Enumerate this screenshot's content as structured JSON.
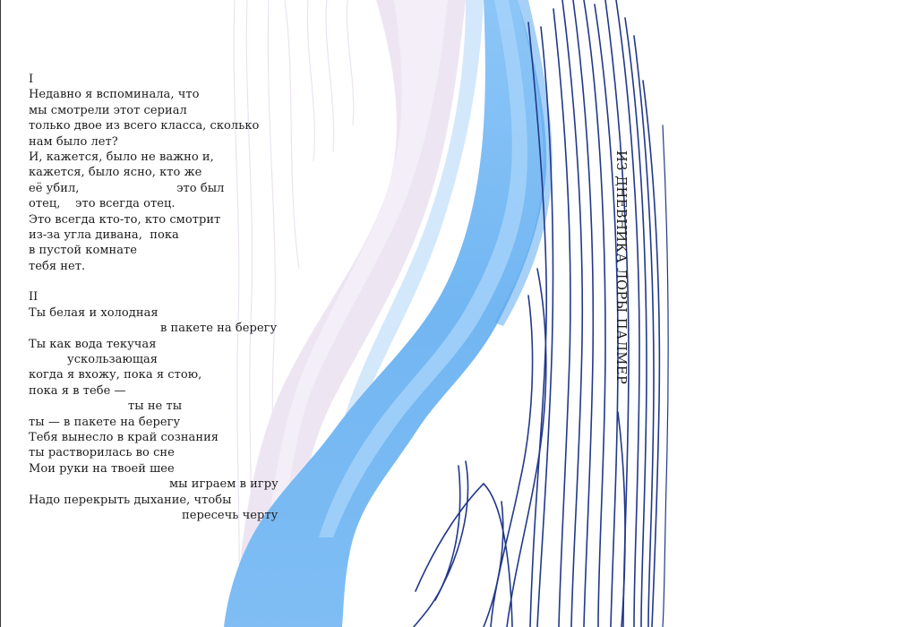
{
  "vertical_title": "ИЗ ДНЕВНИКА ЛОРЫ ПАЛМЕР",
  "poem": {
    "part1": {
      "numeral": "I",
      "lines": [
        "Недавно я вспоминала, что",
        "мы смотрели этот сериал",
        "только двое из всего класса, сколько",
        "нам было лет?",
        "И, кажется, было не важно и,",
        "кажется, было ясно, кто же",
        "её убил,                          это был",
        "отец,    это всегда отец.",
        "Это всегда кто-то, кто смотрит",
        "из-за угла дивана,  пока",
        "в пустой комнате",
        "тебя нет."
      ]
    },
    "part2": {
      "numeral": "II",
      "lines": [
        "Ты белая и холодная",
        "в пакете на берегу",
        "Ты как вода текучая",
        "ускользающая",
        "когда я вхожу, пока я стою,",
        "пока я в тебе —",
        "ты не ты",
        "ты — в пакете на берегу",
        "Тебя вынесло в край сознания",
        "ты растворилась во сне",
        "Мои руки на твоей шее",
        "мы играем в игру",
        "Надо перекрыть дыхание, чтобы",
        "пересечь черту"
      ]
    }
  },
  "colors": {
    "background": "#ffffff",
    "text": "#1c1c1c",
    "blue_light": "#9fcff8",
    "blue_mid": "#6eb4f2",
    "lilac": "#ece6f2",
    "navy": "#1e3484"
  }
}
